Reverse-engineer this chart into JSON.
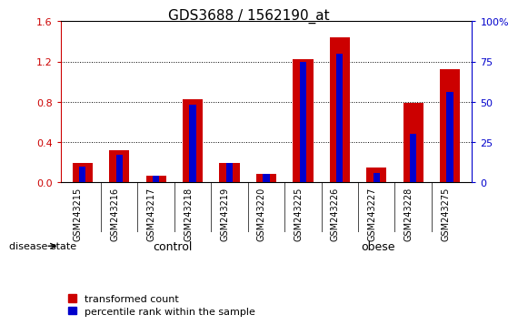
{
  "title": "GDS3688 / 1562190_at",
  "categories": [
    "GSM243215",
    "GSM243216",
    "GSM243217",
    "GSM243218",
    "GSM243219",
    "GSM243220",
    "GSM243225",
    "GSM243226",
    "GSM243227",
    "GSM243228",
    "GSM243275"
  ],
  "red_values": [
    0.19,
    0.32,
    0.07,
    0.83,
    0.19,
    0.08,
    1.22,
    1.44,
    0.15,
    0.79,
    1.12
  ],
  "blue_values_pct": [
    10,
    17,
    4,
    48,
    12,
    5,
    75,
    80,
    6,
    30,
    56
  ],
  "ylim_left": [
    0,
    1.6
  ],
  "ylim_right": [
    0,
    100
  ],
  "yticks_left": [
    0,
    0.4,
    0.8,
    1.2,
    1.6
  ],
  "yticks_right": [
    0,
    25,
    50,
    75,
    100
  ],
  "ytick_labels_right": [
    "0",
    "25",
    "50",
    "75",
    "100%"
  ],
  "red_bar_width": 0.55,
  "blue_bar_width": 0.18,
  "red_color": "#cc0000",
  "blue_color": "#0000cc",
  "control_samples": 6,
  "obese_samples": 5,
  "control_label": "control",
  "obese_label": "obese",
  "control_color": "#ccffcc",
  "obese_color": "#66dd66",
  "bg_color": "#cccccc",
  "legend_red": "transformed count",
  "legend_blue": "percentile rank within the sample",
  "disease_state_label": "disease state",
  "title_fontsize": 11,
  "tick_label_fontsize": 8,
  "legend_fontsize": 8,
  "category_fontsize": 7,
  "label_fontsize": 9
}
